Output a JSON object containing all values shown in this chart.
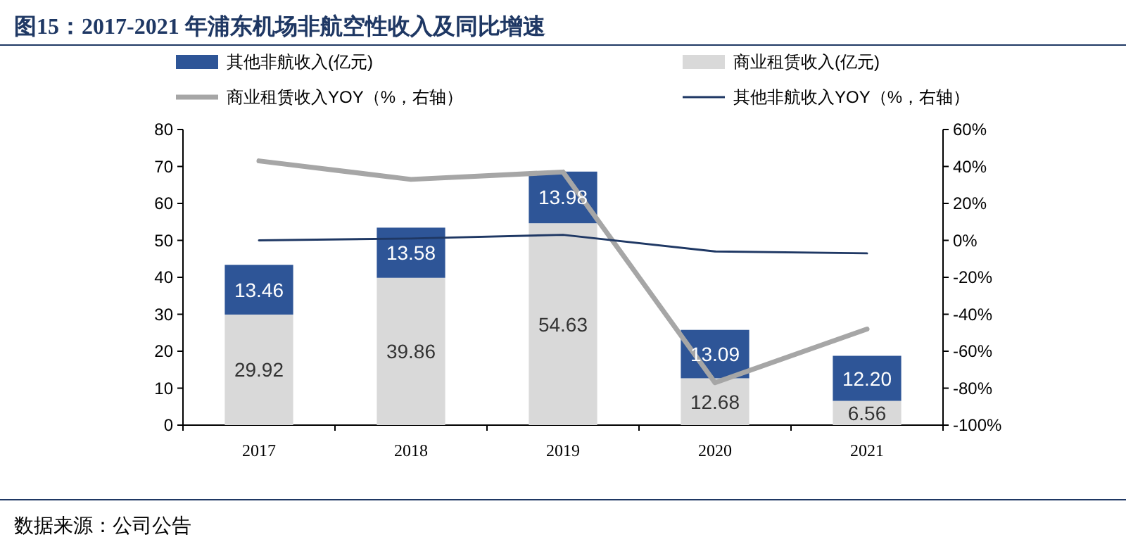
{
  "chart_data": {
    "type": "bar",
    "title": "图15：2017-2021 年浦东机场非航空性收入及同比增速",
    "categories": [
      "2017",
      "2018",
      "2019",
      "2020",
      "2021"
    ],
    "stacked": true,
    "series": [
      {
        "name": "商业租赁收入(亿元)",
        "color": "#d9d9d9",
        "values": [
          29.92,
          39.86,
          54.63,
          12.68,
          6.56
        ],
        "value_labels": [
          "29.92",
          "39.86",
          "54.63",
          "12.68",
          "6.56"
        ]
      },
      {
        "name": "其他非航收入(亿元)",
        "color": "#2e5597",
        "values": [
          13.46,
          13.58,
          13.98,
          13.09,
          12.2
        ],
        "value_labels": [
          "13.46",
          "13.58",
          "13.98",
          "13.09",
          "12.20"
        ]
      },
      {
        "name": "商业租赁收入YOY（%，右轴）",
        "type": "line",
        "axis": "y2",
        "color": "#a6a6a6",
        "values": [
          43,
          33,
          37,
          -77,
          -48
        ]
      },
      {
        "name": "其他非航收入YOY（%，右轴）",
        "type": "line",
        "axis": "y2",
        "color": "#1f3864",
        "values": [
          0,
          1,
          3,
          -6,
          -7
        ]
      }
    ],
    "ylim": [
      0,
      80
    ],
    "yticks": [
      0,
      10,
      20,
      30,
      40,
      50,
      60,
      70,
      80
    ],
    "y2lim": [
      -100,
      60
    ],
    "y2ticks": [
      {
        "value": -100,
        "label": "-100%"
      },
      {
        "value": -80,
        "label": "-80%"
      },
      {
        "value": -60,
        "label": "-60%"
      },
      {
        "value": -40,
        "label": "-40%"
      },
      {
        "value": -20,
        "label": "-20%"
      },
      {
        "value": 0,
        "label": "0%"
      },
      {
        "value": 20,
        "label": "20%"
      },
      {
        "value": 40,
        "label": "40%"
      },
      {
        "value": 60,
        "label": "60%"
      }
    ],
    "legend": "top",
    "annotations": [
      "数据来源：公司公告"
    ]
  }
}
